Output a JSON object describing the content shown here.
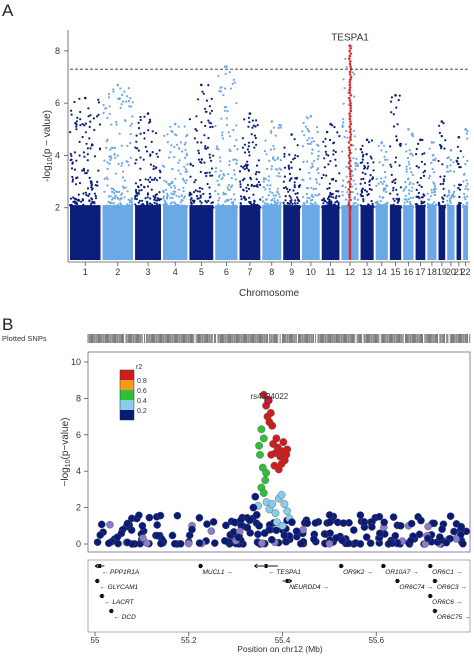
{
  "colors": {
    "manhattan_dark": "#0b1f7a",
    "manhattan_light": "#6aa8e6",
    "manhattan_hit": "#e0282a",
    "threshold": "#333333",
    "ld_purple": "#8a7cc8",
    "ld_bins": [
      "#0a1a78",
      "#87ceeb",
      "#2fbf3a",
      "#f59a1a",
      "#d01c1c"
    ]
  },
  "chart_data": [
    {
      "type": "scatter",
      "panel": "A",
      "title": "",
      "xlabel": "Chromosome",
      "ylabel": "-log10(p-value)",
      "ylim": [
        0,
        8.8
      ],
      "yticks": [
        2,
        4,
        6,
        8
      ],
      "threshold": 7.3,
      "annotation": "TESPA1",
      "categories": [
        "1",
        "2",
        "3",
        "4",
        "5",
        "6",
        "7",
        "8",
        "9",
        "10",
        "11",
        "12",
        "13",
        "14",
        "15",
        "16",
        "17",
        "18",
        "19",
        "20",
        "21",
        "22"
      ],
      "tick_labels": [
        "1",
        "2",
        "3",
        "4",
        "5",
        "6",
        "7",
        "8",
        "9",
        "10",
        "11",
        "12",
        "13",
        "14",
        "15",
        "16",
        "17",
        "18",
        "19",
        "20",
        "21",
        "22"
      ],
      "max_values": [
        6.2,
        6.7,
        5.6,
        5.2,
        6.7,
        7.4,
        5.6,
        5.3,
        4.8,
        5.5,
        5.2,
        8.2,
        4.6,
        4.5,
        6.3,
        5.0,
        4.6,
        4.5,
        5.3,
        4.2,
        4.7,
        5.0
      ],
      "grid": false
    },
    {
      "type": "scatter",
      "panel": "B",
      "title": "",
      "xlabel": "Position on chr12 (Mb)",
      "ylabel": "-log10(p-value)",
      "xlim": [
        55.0,
        55.8
      ],
      "ylim": [
        0,
        10
      ],
      "xticks": [
        55.0,
        55.2,
        55.4,
        55.6
      ],
      "yticks": [
        0,
        2,
        4,
        6,
        8,
        10
      ],
      "top_track_label": "Plotted SNPs",
      "lead_snp": {
        "label": "rs4324022",
        "x": 55.37,
        "y": 7.9
      },
      "legend": {
        "title": "r2",
        "ticks": [
          "0.8",
          "0.6",
          "0.4",
          "0.2"
        ],
        "placement": "top-left"
      },
      "points": [
        {
          "x": 55.36,
          "y": 8.2,
          "r2": 0.95
        },
        {
          "x": 55.365,
          "y": 7.6,
          "r2": 0.95
        },
        {
          "x": 55.37,
          "y": 7.9,
          "r2": 1.0
        },
        {
          "x": 55.375,
          "y": 7.2,
          "r2": 0.92
        },
        {
          "x": 55.368,
          "y": 7.0,
          "r2": 0.9
        },
        {
          "x": 55.372,
          "y": 6.7,
          "r2": 0.9
        },
        {
          "x": 55.378,
          "y": 6.5,
          "r2": 0.88
        },
        {
          "x": 55.38,
          "y": 5.5,
          "r2": 0.85
        },
        {
          "x": 55.385,
          "y": 5.0,
          "r2": 0.87
        },
        {
          "x": 55.39,
          "y": 5.3,
          "r2": 0.86
        },
        {
          "x": 55.395,
          "y": 4.8,
          "r2": 0.84
        },
        {
          "x": 55.4,
          "y": 5.1,
          "r2": 0.85
        },
        {
          "x": 55.405,
          "y": 4.6,
          "r2": 0.83
        },
        {
          "x": 55.41,
          "y": 5.2,
          "r2": 0.86
        },
        {
          "x": 55.383,
          "y": 4.3,
          "r2": 0.82
        },
        {
          "x": 55.392,
          "y": 4.1,
          "r2": 0.83
        },
        {
          "x": 55.398,
          "y": 4.4,
          "r2": 0.84
        },
        {
          "x": 55.387,
          "y": 5.8,
          "r2": 0.88
        },
        {
          "x": 55.402,
          "y": 5.6,
          "r2": 0.85
        },
        {
          "x": 55.376,
          "y": 4.9,
          "r2": 0.81
        },
        {
          "x": 55.408,
          "y": 4.9,
          "r2": 0.84
        },
        {
          "x": 55.355,
          "y": 6.3,
          "r2": 0.55
        },
        {
          "x": 55.36,
          "y": 5.8,
          "r2": 0.55
        },
        {
          "x": 55.352,
          "y": 4.9,
          "r2": 0.5
        },
        {
          "x": 55.358,
          "y": 4.2,
          "r2": 0.52
        },
        {
          "x": 55.365,
          "y": 3.9,
          "r2": 0.52
        },
        {
          "x": 55.35,
          "y": 5.4,
          "r2": 0.55
        },
        {
          "x": 55.363,
          "y": 3.5,
          "r2": 0.45
        },
        {
          "x": 55.355,
          "y": 3.1,
          "r2": 0.4
        },
        {
          "x": 55.36,
          "y": 2.8,
          "r2": 0.4
        },
        {
          "x": 55.366,
          "y": 2.3,
          "r2": 0.35
        },
        {
          "x": 55.348,
          "y": 2.1,
          "r2": 0.35
        },
        {
          "x": 55.372,
          "y": 1.9,
          "r2": 0.3
        },
        {
          "x": 55.378,
          "y": 2.2,
          "r2": 0.3
        },
        {
          "x": 55.385,
          "y": 1.7,
          "r2": 0.3
        },
        {
          "x": 55.392,
          "y": 2.5,
          "r2": 0.3
        },
        {
          "x": 55.398,
          "y": 2.7,
          "r2": 0.3
        },
        {
          "x": 55.404,
          "y": 2.2,
          "r2": 0.3
        },
        {
          "x": 55.41,
          "y": 1.8,
          "r2": 0.28
        },
        {
          "x": 55.415,
          "y": 1.4,
          "r2": 0.28
        },
        {
          "x": 55.388,
          "y": 1.2,
          "r2": 0.28
        },
        {
          "x": 55.4,
          "y": 1.0,
          "r2": 0.25
        },
        {
          "x": 55.342,
          "y": 2.6,
          "r2": 0.15
        },
        {
          "x": 55.345,
          "y": 1.6,
          "r2": 0.15
        },
        {
          "x": 55.338,
          "y": 2.0,
          "r2": 0.1
        },
        {
          "x": 55.33,
          "y": 1.3,
          "r2": 0.1
        },
        {
          "x": 55.325,
          "y": 0.9,
          "r2": 0.1
        },
        {
          "x": 55.42,
          "y": 1.2,
          "r2": 0.1
        },
        {
          "x": 55.43,
          "y": 0.7,
          "r2": 0.1
        },
        {
          "x": 55.35,
          "y": 1.0,
          "r2": 0.1
        },
        {
          "x": 55.362,
          "y": 0.6,
          "r2": 0.1
        }
      ],
      "genes": [
        {
          "name": "PPP1R1A",
          "start": 55.0,
          "end": 55.02,
          "row": 0,
          "dir": "left"
        },
        {
          "name": "MUCL1",
          "start": 55.22,
          "end": 55.23,
          "row": 0,
          "dir": "right"
        },
        {
          "name": "TESPA1",
          "start": 55.34,
          "end": 55.39,
          "row": 0,
          "dir": "left"
        },
        {
          "name": "OR9K2",
          "start": 55.52,
          "end": 55.53,
          "row": 0,
          "dir": "right"
        },
        {
          "name": "OR10A7",
          "start": 55.61,
          "end": 55.62,
          "row": 0,
          "dir": "right"
        },
        {
          "name": "OR6C1",
          "start": 55.71,
          "end": 55.72,
          "row": 0,
          "dir": "right"
        },
        {
          "name": "GLYCAM1",
          "start": 55.0,
          "end": 55.01,
          "row": 1,
          "dir": "left"
        },
        {
          "name": "NEURDD4",
          "start": 55.4,
          "end": 55.42,
          "row": 1,
          "dir": "right"
        },
        {
          "name": "OR6C74",
          "start": 55.64,
          "end": 55.65,
          "row": 1,
          "dir": "right"
        },
        {
          "name": "OR6C3",
          "start": 55.72,
          "end": 55.73,
          "row": 1,
          "dir": "right"
        },
        {
          "name": "LACRT",
          "start": 55.01,
          "end": 55.02,
          "row": 2,
          "dir": "left"
        },
        {
          "name": "OR6C6",
          "start": 55.71,
          "end": 55.72,
          "row": 2,
          "dir": "right"
        },
        {
          "name": "DCD",
          "start": 55.03,
          "end": 55.04,
          "row": 3,
          "dir": "left"
        },
        {
          "name": "OR6C75",
          "start": 55.72,
          "end": 55.73,
          "row": 3,
          "dir": "right"
        }
      ]
    }
  ],
  "panel_letters": {
    "a": "A",
    "b": "B"
  }
}
